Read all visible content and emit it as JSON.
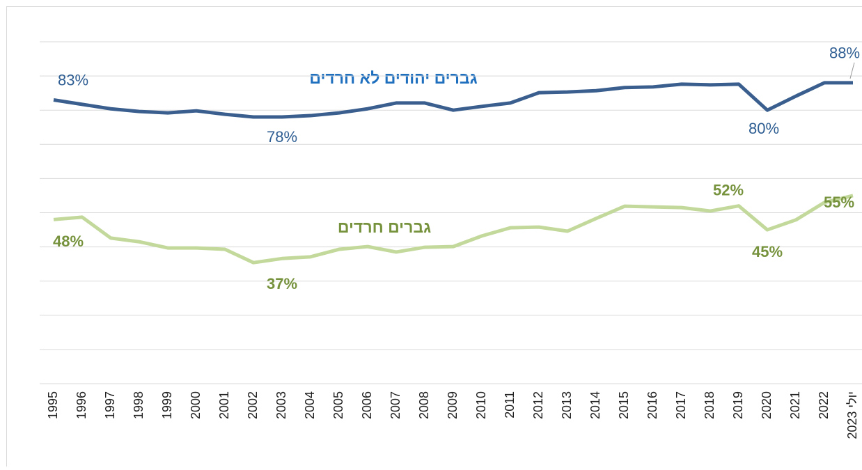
{
  "chart_data": {
    "type": "line",
    "categories": [
      "1995",
      "1996",
      "1997",
      "1998",
      "1999",
      "2000",
      "2001",
      "2002",
      "2003",
      "2004",
      "2005",
      "2006",
      "2007",
      "2008",
      "2009",
      "2010",
      "2011",
      "2012",
      "2013",
      "2014",
      "2015",
      "2016",
      "2017",
      "2018",
      "2019",
      "2020",
      "2021",
      "2022",
      "יולי 2023"
    ],
    "ylim": [
      0,
      100
    ],
    "yticks": [
      0,
      10,
      20,
      30,
      40,
      50,
      60,
      70,
      80,
      90,
      100
    ],
    "grid": true,
    "series": [
      {
        "name": "גברים יהודים לא חרדים",
        "color": "#3a5f8f",
        "values": [
          83,
          81.7,
          80.4,
          79.6,
          79.2,
          79.8,
          78.8,
          78.0,
          78,
          78.4,
          79.2,
          80.4,
          82.1,
          82.1,
          80.0,
          81.1,
          82.1,
          85.1,
          85.3,
          85.7,
          86.6,
          86.8,
          87.6,
          87.4,
          87.6,
          80,
          84.1,
          88.0,
          88
        ],
        "value_labels": [
          "83%",
          null,
          null,
          null,
          null,
          null,
          null,
          null,
          "78%",
          null,
          null,
          null,
          null,
          null,
          null,
          null,
          null,
          null,
          null,
          null,
          null,
          null,
          null,
          null,
          null,
          "80%",
          null,
          null,
          "88%"
        ]
      },
      {
        "name": "גברים חרדים",
        "color": "#c3d99b",
        "values": [
          48,
          48.7,
          42.6,
          41.5,
          39.7,
          39.7,
          39.3,
          35.4,
          36.6,
          37.1,
          39.3,
          40.1,
          38.5,
          39.9,
          40.1,
          43.2,
          45.6,
          45.8,
          44.6,
          48.3,
          51.9,
          51.7,
          51.5,
          50.5,
          52,
          45,
          47.9,
          53.0,
          55
        ],
        "value_labels": [
          "48%",
          null,
          null,
          null,
          null,
          null,
          null,
          null,
          "37%",
          null,
          null,
          null,
          null,
          null,
          null,
          null,
          null,
          null,
          null,
          null,
          null,
          null,
          null,
          null,
          "52%",
          "45%",
          null,
          null,
          "55%"
        ]
      }
    ]
  }
}
